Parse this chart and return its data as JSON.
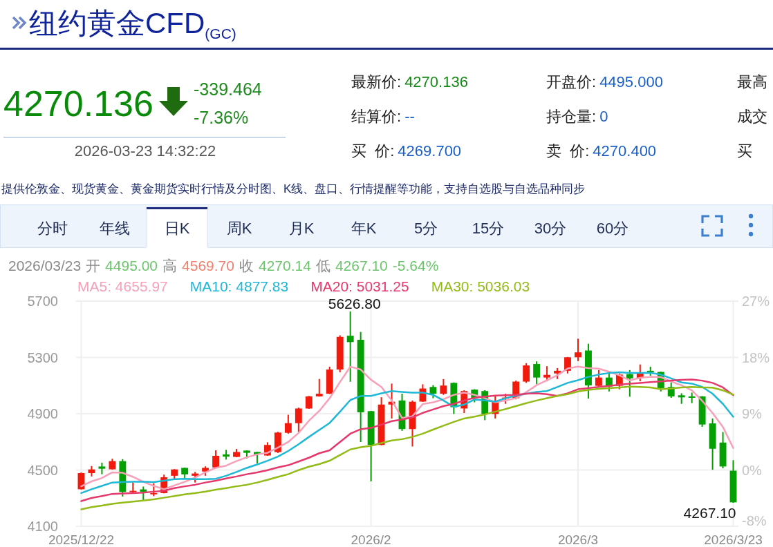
{
  "chart_data": {
    "type": "candlestick",
    "title": "纽约黄金CFD$_{(GC)}$",
    "categories": [
      "2025/12/22",
      null,
      null,
      null,
      null,
      null,
      null,
      null,
      null,
      null,
      null,
      null,
      null,
      null,
      null,
      null,
      null,
      null,
      null,
      null,
      null,
      null,
      null,
      null,
      null,
      null,
      null,
      null,
      "2026/2",
      null,
      null,
      null,
      null,
      null,
      null,
      null,
      null,
      null,
      null,
      null,
      null,
      null,
      null,
      null,
      null,
      null,
      null,
      null,
      "2026/3",
      null,
      null,
      null,
      null,
      null,
      null,
      null,
      null,
      null,
      null,
      null,
      null,
      null,
      null,
      "2026/3/23"
    ],
    "ohlc": [
      [
        4363,
        4482,
        4362,
        4478
      ],
      [
        4478,
        4528,
        4454,
        4504
      ],
      [
        4525,
        4552,
        4470,
        4509
      ],
      [
        4505,
        4580,
        4503,
        4563
      ],
      [
        4563,
        4577,
        4311,
        4344
      ],
      [
        4343,
        4411,
        4340,
        4352
      ],
      [
        4362,
        4382,
        4287,
        4346
      ],
      [
        4327,
        4406,
        4314,
        4336
      ],
      [
        4336,
        4467,
        4334,
        4448
      ],
      [
        4459,
        4506,
        4438,
        4504
      ],
      [
        4515,
        4517,
        4440,
        4469
      ],
      [
        4459,
        4486,
        4411,
        4475
      ],
      [
        4489,
        4526,
        4459,
        4515
      ],
      [
        4518,
        4640,
        4516,
        4601
      ],
      [
        4611,
        4643,
        4574,
        4595
      ],
      [
        4593,
        4649,
        4591,
        4628
      ],
      [
        4638,
        4640,
        4582,
        4622
      ],
      [
        4628,
        4630,
        4547,
        4611
      ],
      [
        4603,
        4697,
        4601,
        4678
      ],
      [
        4627,
        4771,
        4621,
        4766
      ],
      [
        4764,
        4892,
        4758,
        4833
      ],
      [
        4833,
        4943,
        4770,
        4937
      ],
      [
        4937,
        5026,
        4935,
        5023
      ],
      [
        5023,
        5147,
        5021,
        5042
      ],
      [
        5042,
        5234,
        5040,
        5214
      ],
      [
        5214,
        5457,
        5194,
        5446
      ],
      [
        5454,
        5626.8,
        5127,
        5409
      ],
      [
        5425,
        5481,
        4699,
        4910
      ],
      [
        4918,
        4920,
        4419,
        4678
      ],
      [
        4678,
        5017,
        4676,
        4965
      ],
      [
        4965,
        5114,
        4866,
        4985
      ],
      [
        4994,
        5042,
        4778,
        4791
      ],
      [
        4791,
        4994,
        4667,
        4985
      ],
      [
        4986,
        5109,
        4984,
        5079
      ],
      [
        5090,
        5103,
        5010,
        5042
      ],
      [
        5042,
        5146,
        5034,
        5100
      ],
      [
        5119,
        5122,
        4898,
        4946
      ],
      [
        4937,
        5067,
        4905,
        5061
      ],
      [
        5071,
        5074,
        4981,
        5010
      ],
      [
        5061,
        5067,
        4854,
        4898
      ],
      [
        4898,
        5023,
        4866,
        4991
      ],
      [
        5007,
        5042,
        4970,
        5015
      ],
      [
        5010,
        5135,
        5002,
        5128
      ],
      [
        5128,
        5259,
        5119,
        5243
      ],
      [
        5253,
        5272,
        5109,
        5157
      ],
      [
        5157,
        5238,
        5130,
        5176
      ],
      [
        5186,
        5224,
        5146,
        5205
      ],
      [
        5205,
        5303,
        5186,
        5301
      ],
      [
        5301,
        5433,
        5274,
        5336
      ],
      [
        5349,
        5397,
        5007,
        5101
      ],
      [
        5098,
        5210,
        5090,
        5157
      ],
      [
        5157,
        5198,
        5058,
        5093
      ],
      [
        5098,
        5186,
        5074,
        5178
      ],
      [
        5181,
        5210,
        5021,
        5151
      ],
      [
        5151,
        5250,
        5130,
        5194
      ],
      [
        5205,
        5234,
        5170,
        5194
      ],
      [
        5197,
        5199,
        5058,
        5082
      ],
      [
        5090,
        5122,
        5013,
        5023
      ],
      [
        5031,
        5045,
        4970,
        5016
      ],
      [
        5023,
        5050,
        4975,
        5013
      ],
      [
        5023,
        5025,
        4807,
        4823
      ],
      [
        4831,
        4866,
        4502,
        4651
      ],
      [
        4695,
        4770,
        4512,
        4525
      ],
      [
        4495.0,
        4569.7,
        4267.1,
        4270.14
      ]
    ],
    "colors": [
      "#f21a0c",
      "#f21a0c",
      "#04a004",
      "#f21a0c",
      "#04a004",
      "#f21a0c",
      "#04a004",
      "#f21a0c",
      "#f21a0c",
      "#f21a0c",
      "#04a004",
      "#f21a0c",
      "#f21a0c",
      "#f21a0c",
      "#04a004",
      "#f21a0c",
      "#04a004",
      "#04a004",
      "#f21a0c",
      "#f21a0c",
      "#f21a0c",
      "#f21a0c",
      "#f21a0c",
      "#f21a0c",
      "#f21a0c",
      "#f21a0c",
      "#04a004",
      "#04a004",
      "#04a004",
      "#f21a0c",
      "#f21a0c",
      "#04a004",
      "#f21a0c",
      "#f21a0c",
      "#04a004",
      "#f21a0c",
      "#04a004",
      "#f21a0c",
      "#04a004",
      "#04a004",
      "#f21a0c",
      "#f21a0c",
      "#f21a0c",
      "#f21a0c",
      "#04a004",
      "#f21a0c",
      "#f21a0c",
      "#f21a0c",
      "#f21a0c",
      "#04a004",
      "#f21a0c",
      "#04a004",
      "#f21a0c",
      "#04a004",
      "#f21a0c",
      "#04a004",
      "#04a004",
      "#04a004",
      "#04a004",
      "#04a004",
      "#04a004",
      "#04a004",
      "#04a004",
      "#04a004"
    ],
    "series": [
      {
        "name": "MA5: 4655.97",
        "type": "line",
        "color": "#f7a1b9",
        "values": [
          4384,
          4419,
          4443,
          4483,
          4480,
          4451,
          4416,
          4387,
          4363,
          4390,
          4416,
          4446,
          4483,
          4515,
          4531,
          4563,
          4590,
          4611,
          4622,
          4659,
          4699,
          4763,
          4850,
          4920,
          5010,
          5125,
          5234,
          5214,
          5141,
          5090,
          4994,
          4870,
          4882,
          4969,
          4981,
          5002,
          5034,
          5050,
          5034,
          5010,
          4981,
          4994,
          5010,
          5053,
          5103,
          5138,
          5173,
          5221,
          5235,
          5224,
          5220,
          5198,
          5173,
          5136,
          5155,
          5162,
          5160,
          5129,
          5102,
          5066,
          4991,
          4905,
          4806,
          4656
        ]
      },
      {
        "name": "MA10: 4877.83",
        "type": "line",
        "color": "#1cb8d6",
        "values": [
          4336,
          4363,
          4387,
          4411,
          4414,
          4416,
          4416,
          4414,
          4424,
          4435,
          4437,
          4435,
          4435,
          4438,
          4459,
          4486,
          4515,
          4539,
          4566,
          4595,
          4635,
          4683,
          4735,
          4785,
          4834,
          4914,
          4997,
          5026,
          5026,
          5045,
          5061,
          5055,
          5050,
          5050,
          5034,
          4994,
          4949,
          4965,
          5001,
          4994,
          4986,
          5010,
          5029,
          5042,
          5055,
          5061,
          5090,
          5119,
          5138,
          5162,
          5178,
          5189,
          5194,
          5189,
          5189,
          5191,
          5178,
          5151,
          5122,
          5114,
          5090,
          5042,
          4970,
          4878
        ]
      },
      {
        "name": "MA20: 5031.25",
        "type": "line",
        "color": "#e6396b",
        "values": [
          4279,
          4301,
          4315,
          4330,
          4333,
          4336,
          4339,
          4346,
          4352,
          4371,
          4384,
          4395,
          4411,
          4424,
          4440,
          4454,
          4470,
          4483,
          4499,
          4518,
          4534,
          4560,
          4587,
          4619,
          4640,
          4699,
          4758,
          4790,
          4799,
          4822,
          4847,
          4858,
          4874,
          4906,
          4930,
          4954,
          4970,
          4994,
          5013,
          5021,
          5029,
          5031,
          5034,
          5042,
          5045,
          5039,
          5026,
          5045,
          5074,
          5082,
          5090,
          5098,
          5106,
          5114,
          5119,
          5125,
          5130,
          5135,
          5141,
          5143,
          5135,
          5119,
          5087,
          5031
        ]
      },
      {
        "name": "MA30: 5036.03",
        "type": "line",
        "color": "#93bb18",
        "values": [
          4220,
          4236,
          4247,
          4260,
          4268,
          4275,
          4283,
          4291,
          4303,
          4315,
          4327,
          4336,
          4347,
          4360,
          4371,
          4384,
          4395,
          4411,
          4430,
          4451,
          4470,
          4499,
          4523,
          4542,
          4566,
          4606,
          4646,
          4662,
          4672,
          4691,
          4710,
          4719,
          4735,
          4758,
          4787,
          4815,
          4842,
          4866,
          4879,
          4895,
          4914,
          4933,
          4954,
          4975,
          4994,
          5010,
          5026,
          5039,
          5058,
          5069,
          5077,
          5082,
          5087,
          5093,
          5090,
          5087,
          5074,
          5079,
          5087,
          5090,
          5087,
          5085,
          5066,
          5036
        ]
      }
    ],
    "ylim": [
      4100,
      5700
    ],
    "yticks": [
      4100,
      4500,
      4900,
      5300,
      5700
    ],
    "y2lim": [
      -8.9,
      26.7
    ],
    "y2ticks": [
      {
        "value": -8,
        "label": "-8%"
      },
      {
        "value": 0,
        "label": "0%"
      },
      {
        "value": 8.9,
        "label": "9%"
      },
      {
        "value": 17.8,
        "label": "18%"
      },
      {
        "value": 26.7,
        "label": "27%"
      }
    ],
    "grid": true,
    "annotations": [
      "4270.136",
      "-339.464",
      "-7.36%",
      "2026-03-23 14:32:22",
      "最新价:",
      "4270.136",
      "开盘价:",
      "4495.000",
      "最高",
      "结算价:",
      "--",
      "持仓量:",
      "0",
      "成交",
      "买  价:",
      "4269.700",
      "卖  价:",
      "4270.400",
      "买",
      "提供伦敦金、现货黄金、黄金期货实时行情及分时图、K线、盘口、行情提醒等功能，支持自选股与自选品种同步",
      "分时",
      "年线",
      "日K",
      "周K",
      "月K",
      "年K",
      "5分",
      "15分",
      "30分",
      "60分",
      "2026/03/23",
      "开",
      "4495.00",
      "高",
      "4569.70",
      "收",
      "4270.14",
      "低",
      "4267.10",
      "-5.64%",
      "5626.80",
      "4267.10"
    ]
  }
}
